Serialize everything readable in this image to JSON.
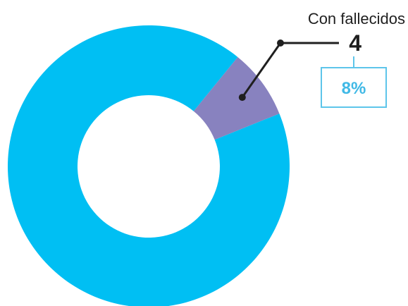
{
  "chart_data": {
    "type": "pie",
    "slices": [
      {
        "value": 92,
        "color": "#00BFF3"
      },
      {
        "label": "Con fallecidos",
        "value": 8,
        "count": "4",
        "percent": "8%",
        "color": "#8882BF"
      }
    ]
  },
  "callout": {
    "label": "Con fallecidos",
    "value": "4",
    "percent": "8%"
  },
  "colors": {
    "main": "#00BFF3",
    "highlight": "#8882BF",
    "percent_box": "#5DC5EA",
    "percent_text": "#40B9E6",
    "leader_line": "#1f1f1f"
  }
}
